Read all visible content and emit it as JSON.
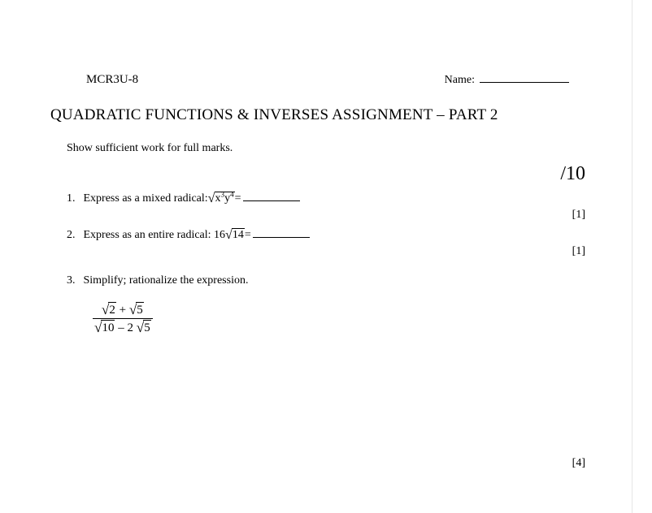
{
  "header": {
    "course_code": "MCR3U-8",
    "name_label": "Name:"
  },
  "title": "QUADRATIC FUNCTIONS & INVERSES ASSIGNMENT – PART 2",
  "instructions": "Show sufficient work for full marks.",
  "total_marks": "/10",
  "questions": {
    "q1": {
      "num": "1.",
      "text": "Express as a mixed radical: ",
      "radicand": "x",
      "exp_x": "3",
      "var_y": "y",
      "exp_y": "4",
      "equals": " =",
      "marks": "[1]"
    },
    "q2": {
      "num": "2.",
      "text": "Express as an entire radical:  16",
      "radicand": "14",
      "equals": " =",
      "marks": "[1]"
    },
    "q3": {
      "num": "3.",
      "text": "Simplify; rationalize the expression.",
      "numer_a": "2",
      "numer_plus": " + ",
      "numer_b": "5",
      "denom_a": "10",
      "denom_minus": " – 2",
      "denom_b": "5",
      "marks": "[4]"
    }
  }
}
